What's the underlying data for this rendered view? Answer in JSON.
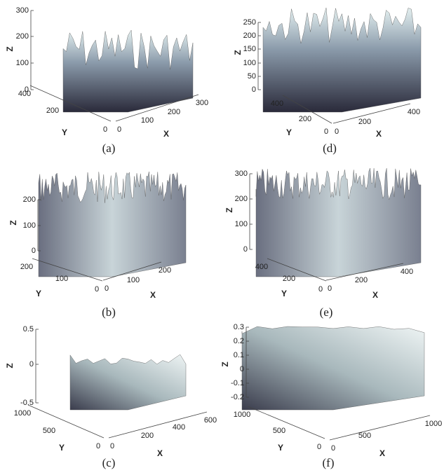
{
  "panels": [
    {
      "caption": "(a)",
      "zlabel": "Z",
      "ylabel": "Y",
      "xlabel": "X",
      "zticks": [
        0,
        100,
        200,
        300
      ],
      "yticks": [
        0,
        200,
        400
      ],
      "xticks": [
        0,
        100,
        200,
        300
      ]
    },
    {
      "caption": "(b)",
      "zlabel": "Z",
      "ylabel": "Y",
      "xlabel": "X",
      "zticks": [
        0,
        100,
        200
      ],
      "yticks": [
        0,
        100,
        200
      ],
      "xticks": [
        0,
        100,
        200
      ]
    },
    {
      "caption": "(c)",
      "zlabel": "Z",
      "ylabel": "Y",
      "xlabel": "X",
      "zticks": [
        -0.5,
        0,
        0.5
      ],
      "yticks": [
        0,
        500,
        1000
      ],
      "xticks": [
        0,
        200,
        400,
        600
      ]
    },
    {
      "caption": "(d)",
      "zlabel": "Z",
      "ylabel": "Y",
      "xlabel": "X",
      "zticks": [
        0,
        50,
        100,
        150,
        200,
        250
      ],
      "yticks": [
        0,
        200,
        400
      ],
      "xticks": [
        0,
        200,
        400
      ]
    },
    {
      "caption": "(e)",
      "zlabel": "Z",
      "ylabel": "Y",
      "xlabel": "X",
      "zticks": [
        0,
        100,
        200,
        300
      ],
      "yticks": [
        0,
        200,
        400
      ],
      "xticks": [
        0,
        200,
        400
      ]
    },
    {
      "caption": "(f)",
      "zlabel": "Z",
      "ylabel": "Y",
      "xlabel": "X",
      "zticks": [
        -0.2,
        -0.1,
        0,
        0.1,
        0.2,
        0.3
      ],
      "yticks": [
        0,
        500,
        1000
      ],
      "xticks": [
        0,
        500,
        1000
      ]
    }
  ]
}
